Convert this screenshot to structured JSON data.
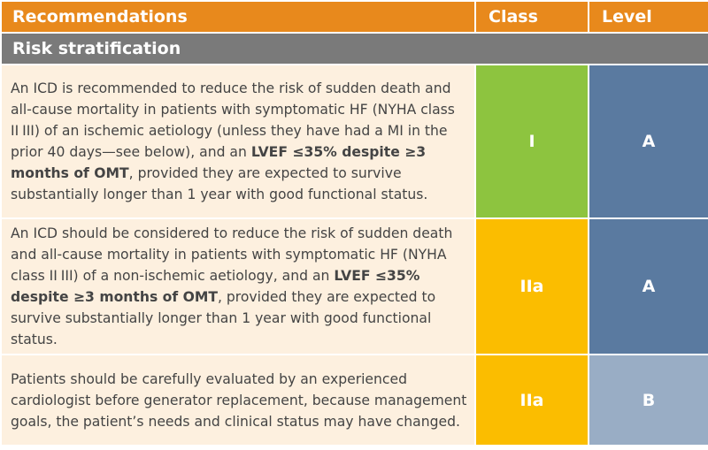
{
  "table": {
    "header": [
      "Recommendations",
      "Class",
      "Level"
    ],
    "section": "Risk stratification",
    "rows": [
      {
        "parts": [
          "An ICD is recommended to reduce the risk of sudden death and all-cause mortality in patients with symptomatic HF (NYHA class II III) of an ischemic aetiology (unless they have had a MI in the prior 40 days—see below), and an ",
          "LVEF ≤35% despite ≥3 months of OMT",
          ", provided they are expected to survive substantially longer than 1 year with good functional status."
        ],
        "class": "I",
        "level": "A"
      },
      {
        "parts": [
          "An ICD should be considered to reduce the risk of sudden death and all-cause mortality in patients with symptomatic HF (NYHA class II III) of a non-ischemic aetiology, and an ",
          "LVEF ≤35% despite ≥3 months of OMT",
          ", provided they are expected to survive substantially longer than 1 year with good functional status."
        ],
        "class": "IIa",
        "level": "A"
      },
      {
        "parts": [
          "Patients should be carefully evaluated by an experienced cardiologist before generator replacement, because management goals, the patient’s needs and clinical status may have changed."
        ],
        "class": "IIa",
        "level": "B"
      }
    ]
  }
}
